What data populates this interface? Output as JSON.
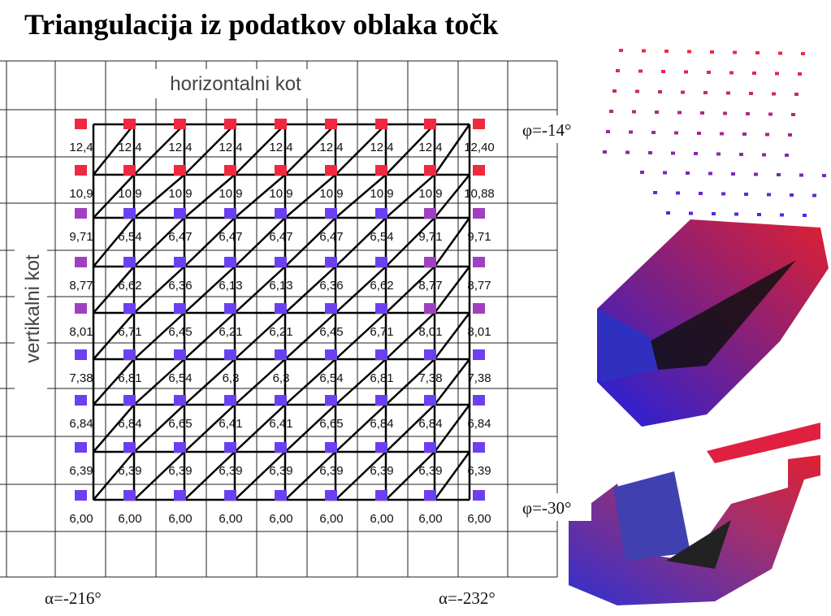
{
  "header": {
    "title": "Triangulacija iz podatkov oblaka točk"
  },
  "axes": {
    "horizontal": "horizontalni kot",
    "vertical": "vertikalni kot"
  },
  "angles": {
    "phi_top": "φ=-14°",
    "phi_bottom": "φ=-30°",
    "alpha_left": "α=-216°",
    "alpha_right": "α=-232°"
  },
  "table": {
    "rows": [
      [
        "12,4",
        "12,4",
        "12,4",
        "12,4",
        "12,4",
        "12,4",
        "12,4",
        "12,4",
        "12,40"
      ],
      [
        "10,9",
        "10,9",
        "10,9",
        "10,9",
        "10,9",
        "10,9",
        "10,9",
        "10,9",
        "10,88"
      ],
      [
        "9,71",
        "6,54",
        "6,47",
        "6,47",
        "6,47",
        "6,47",
        "6,54",
        "9,71",
        "9,71"
      ],
      [
        "8,77",
        "6,62",
        "6,36",
        "6,13",
        "6,13",
        "6,36",
        "6,62",
        "8,77",
        "8,77"
      ],
      [
        "8,01",
        "6,71",
        "6,45",
        "6,21",
        "6,21",
        "6,45",
        "6,71",
        "8,01",
        "8,01"
      ],
      [
        "7,38",
        "6,81",
        "6,54",
        "6,3",
        "6,3",
        "6,54",
        "6,81",
        "7,38",
        "7,38"
      ],
      [
        "6,84",
        "6,84",
        "6,65",
        "6,41",
        "6,41",
        "6,65",
        "6,84",
        "6,84",
        "6,84"
      ],
      [
        "6,39",
        "6,39",
        "6,39",
        "6,39",
        "6,39",
        "6,39",
        "6,39",
        "6,39",
        "6,39"
      ],
      [
        "6,00",
        "6,00",
        "6,00",
        "6,00",
        "6,00",
        "6,00",
        "6,00",
        "6,00",
        "6,00"
      ]
    ]
  }
}
